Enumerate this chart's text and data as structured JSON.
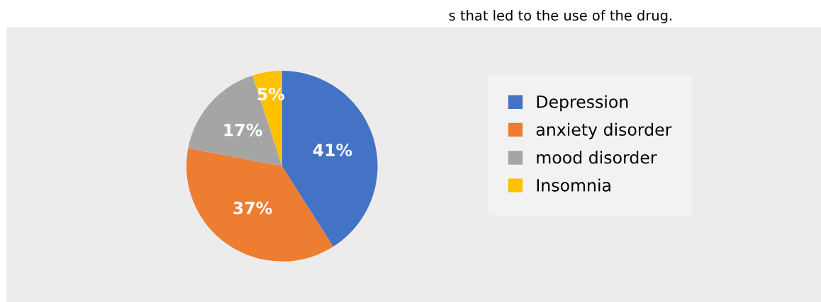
{
  "chart_data": {
    "type": "pie",
    "title": "s that led to the use of the drug.",
    "categories": [
      "Depression",
      "anxiety disorder",
      "mood disorder",
      "Insomnia"
    ],
    "values": [
      41,
      37,
      17,
      5
    ],
    "colors": [
      "#4472c4",
      "#ed7d31",
      "#a5a5a5",
      "#ffc000"
    ],
    "value_labels": [
      "41%",
      "37%",
      "17%",
      "5%"
    ],
    "legend": "right"
  }
}
